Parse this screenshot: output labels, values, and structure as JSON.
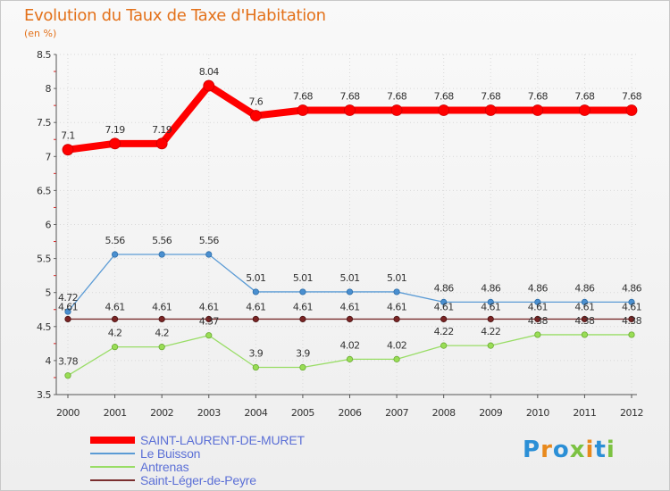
{
  "chart_data": {
    "type": "line",
    "title": "Evolution du Taux de Taxe d'Habitation",
    "subtitle": "(en %)",
    "xlabel": "",
    "ylabel": "",
    "x": [
      "2000",
      "2001",
      "2002",
      "2003",
      "2004",
      "2005",
      "2006",
      "2007",
      "2008",
      "2009",
      "2010",
      "2011",
      "2012"
    ],
    "ylim": [
      3.5,
      8.5
    ],
    "yticks": [
      "3.5",
      "4",
      "4.5",
      "5",
      "5.5",
      "6",
      "6.5",
      "7",
      "7.5",
      "8",
      "8.5"
    ],
    "series": [
      {
        "name": "SAINT-LAURENT-DE-MURET",
        "color": "#ff0000",
        "values": [
          7.1,
          7.19,
          7.19,
          8.04,
          7.6,
          7.68,
          7.68,
          7.68,
          7.68,
          7.68,
          7.68,
          7.68,
          7.68
        ],
        "labels": [
          "7.1",
          "7.19",
          "7.19",
          "8.04",
          "7.6",
          "7.68",
          "7.68",
          "7.68",
          "7.68",
          "7.68",
          "7.68",
          "7.68",
          "7.68"
        ]
      },
      {
        "name": "Le Buisson",
        "color": "#5b9bd5",
        "values": [
          4.72,
          5.56,
          5.56,
          5.56,
          5.01,
          5.01,
          5.01,
          5.01,
          4.86,
          4.86,
          4.86,
          4.86,
          4.86
        ],
        "labels": [
          "4.72",
          "5.56",
          "5.56",
          "5.56",
          "5.01",
          "5.01",
          "5.01",
          "5.01",
          "4.86",
          "4.86",
          "4.86",
          "4.86",
          "4.86"
        ]
      },
      {
        "name": "Antrenas",
        "color": "#99dd66",
        "values": [
          3.78,
          4.2,
          4.2,
          4.37,
          3.9,
          3.9,
          4.02,
          4.02,
          4.22,
          4.22,
          4.38,
          4.38,
          4.38
        ],
        "labels": [
          "3.78",
          "4.2",
          "4.2",
          "4.37",
          "3.9",
          "3.9",
          "4.02",
          "4.02",
          "4.22",
          "4.22",
          "4.38",
          "4.38",
          "4.38"
        ]
      },
      {
        "name": "Saint-Léger-de-Peyre",
        "color": "#7a2e2e",
        "values": [
          4.61,
          4.61,
          4.61,
          4.61,
          4.61,
          4.61,
          4.61,
          4.61,
          4.61,
          4.61,
          4.61,
          4.61,
          4.61
        ],
        "labels": [
          "4.61",
          "4.61",
          "4.61",
          "4.61",
          "4.61",
          "4.61",
          "4.61",
          "4.61",
          "4.61",
          "4.61",
          "4.61",
          "4.61",
          "4.61"
        ]
      }
    ]
  },
  "branding": {
    "logo_text": "Proxiti",
    "logo_colors": [
      "#2b8fd6",
      "#e8891c",
      "#2b8fd6",
      "#7cc242",
      "#e8891c",
      "#2b8fd6",
      "#7cc242"
    ]
  }
}
